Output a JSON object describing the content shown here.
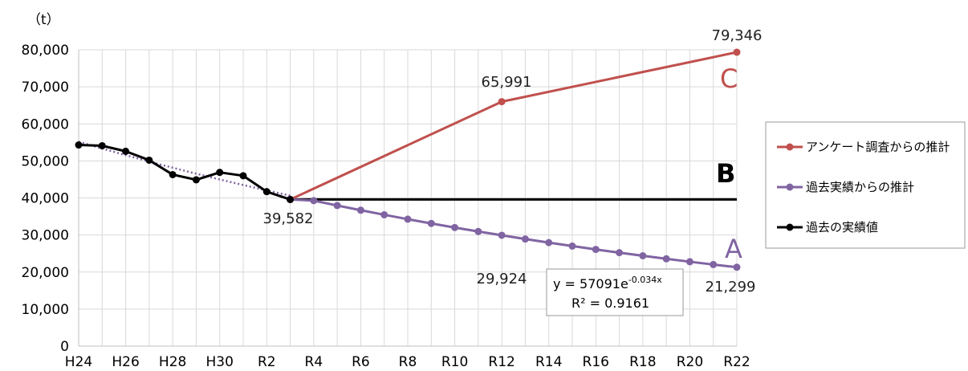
{
  "chart_data": {
    "type": "line",
    "unit_label": "（t）",
    "x": [
      "H24",
      "H25",
      "H26",
      "H27",
      "H28",
      "H29",
      "H30",
      "R1",
      "R2",
      "R3",
      "R4",
      "R5",
      "R6",
      "R7",
      "R8",
      "R9",
      "R10",
      "R11",
      "R12",
      "R13",
      "R14",
      "R15",
      "R16",
      "R17",
      "R18",
      "R19",
      "R20",
      "R21",
      "R22"
    ],
    "x_tick_labels": [
      "H24",
      "H26",
      "H28",
      "H30",
      "R2",
      "R4",
      "R6",
      "R8",
      "R10",
      "R12",
      "R14",
      "R16",
      "R18",
      "R20",
      "R22"
    ],
    "y_ticks": [
      "0",
      "10,000",
      "20,000",
      "30,000",
      "40,000",
      "50,000",
      "60,000",
      "70,000",
      "80,000"
    ],
    "ylim": [
      0,
      80000
    ],
    "grid": true,
    "legend_position": "right",
    "series": [
      {
        "name": "アンケート調査からの推計",
        "letter": "C",
        "color": "#c0504d",
        "points": [
          [
            9,
            39582
          ],
          [
            18,
            65991
          ],
          [
            28,
            79346
          ]
        ]
      },
      {
        "name": "過去実績からの推計",
        "letter": "A",
        "color": "#8064a2",
        "points": [
          [
            9,
            39582
          ],
          [
            10,
            39270
          ],
          [
            11,
            37960
          ],
          [
            12,
            36690
          ],
          [
            13,
            35460
          ],
          [
            14,
            34270
          ],
          [
            15,
            33120
          ],
          [
            16,
            32010
          ],
          [
            17,
            30940
          ],
          [
            18,
            29924
          ],
          [
            19,
            28910
          ],
          [
            20,
            27940
          ],
          [
            21,
            27010
          ],
          [
            22,
            26100
          ],
          [
            23,
            25230
          ],
          [
            24,
            24390
          ],
          [
            25,
            23570
          ],
          [
            26,
            22780
          ],
          [
            27,
            22020
          ],
          [
            28,
            21299
          ]
        ]
      },
      {
        "name": "過去の実績値",
        "color": "#000000",
        "points": [
          [
            0,
            54300
          ],
          [
            1,
            54100
          ],
          [
            2,
            52600
          ],
          [
            3,
            50200
          ],
          [
            4,
            46300
          ],
          [
            5,
            44900
          ],
          [
            6,
            46900
          ],
          [
            7,
            46000
          ],
          [
            8,
            41700
          ],
          [
            9,
            39582
          ]
        ]
      }
    ],
    "flat_line": {
      "letter": "B",
      "color": "#000000",
      "value": 39582,
      "from": 9,
      "to": 28
    },
    "trendline": {
      "color": "#8064a2",
      "style": "dotted",
      "a": 57091,
      "b": -0.034,
      "equation_base": "y = 57091e",
      "equation_exp": "-0.034x",
      "r2": "R² = 0.9161"
    },
    "data_labels": [
      {
        "text": "79,346",
        "series": "C"
      },
      {
        "text": "65,991",
        "series": "C"
      },
      {
        "text": "39,582",
        "series": "actual"
      },
      {
        "text": "29,924",
        "series": "A"
      },
      {
        "text": "21,299",
        "series": "A"
      }
    ]
  }
}
